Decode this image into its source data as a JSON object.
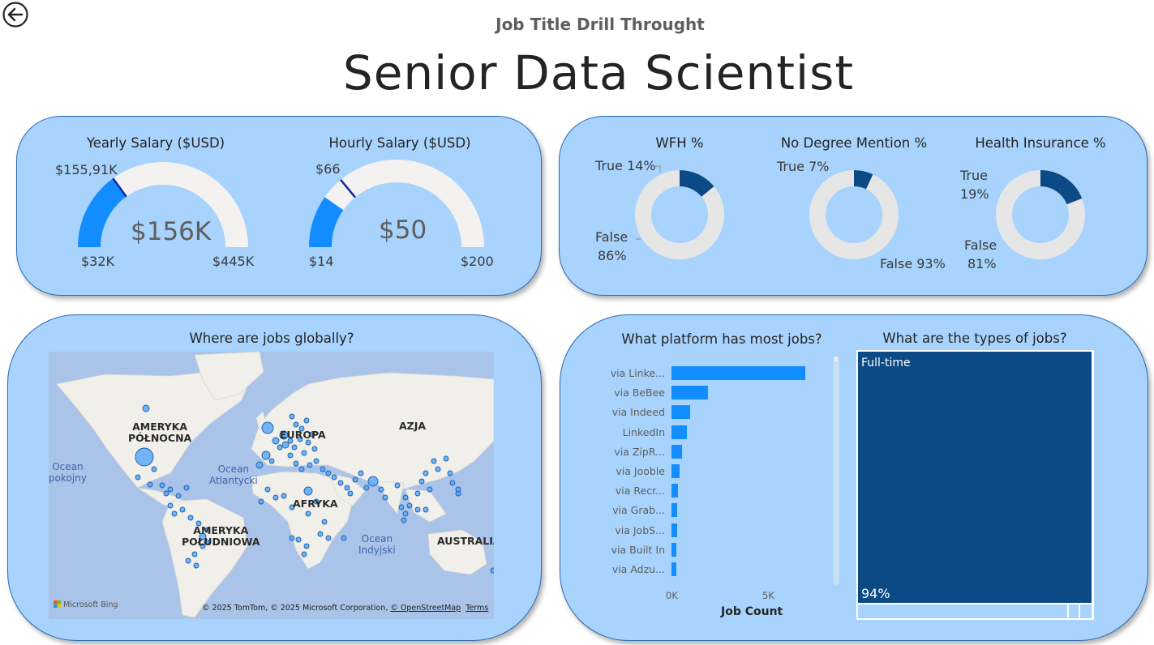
{
  "header": {
    "back_icon": "back-arrow-icon",
    "subtitle": "Job Title Drill Throught",
    "title": "Senior Data Scientist"
  },
  "salary": {
    "yearly": {
      "title": "Yearly Salary ($USD)",
      "value_label": "$156K",
      "target_label": "$155,91K",
      "min_label": "$32K",
      "max_label": "$445K",
      "value": 156,
      "target": 155.91,
      "min": 32,
      "max": 445
    },
    "hourly": {
      "title": "Hourly Salary ($USD)",
      "value_label": "$50",
      "target_label": "$66",
      "min_label": "$14",
      "max_label": "$200",
      "value": 50,
      "target": 66,
      "min": 14,
      "max": 200
    }
  },
  "percent": {
    "wfh": {
      "title": "WFH %",
      "true_label": "True 14%",
      "false_line1": "False",
      "false_line2": "86%",
      "true_pct": 14
    },
    "degree": {
      "title": "No Degree Mention %",
      "true_label": "True 7%",
      "false_label": "False 93%",
      "true_pct": 7
    },
    "health": {
      "title": "Health Insurance %",
      "true_line1": "True",
      "true_line2": "19%",
      "false_line1": "False",
      "false_line2": "81%",
      "true_pct": 19
    }
  },
  "map": {
    "title": "Where are jobs globally?",
    "labels": {
      "na": [
        "AMERYKA",
        "PÓŁNOCNA"
      ],
      "eu": "EUROPA",
      "as": "AZJA",
      "af": "AFRYKA",
      "sa": [
        "AMERYKA",
        "POŁUDNIOWA"
      ],
      "au": "AUSTRALIA"
    },
    "oceans": {
      "pacific": [
        "Ocean",
        "pokojny"
      ],
      "atlantic": [
        "Ocean",
        "Atlantycki"
      ],
      "indian": [
        "Ocean",
        "Indyjski"
      ]
    },
    "bing": "Microsoft Bing",
    "copyright": "© 2025 TomTom, © 2025 Microsoft Corporation,",
    "osm": "© OpenStreetMap",
    "terms": "Terms"
  },
  "platform": {
    "title": "What platform has most jobs?",
    "axis_title": "Job Count",
    "ticks": [
      "0K",
      "5K"
    ],
    "colors": {
      "bar": "#118dff"
    }
  },
  "chart_data": {
    "type": "bar",
    "orientation": "horizontal",
    "categories": [
      "via Linke...",
      "via BeBee",
      "via Indeed",
      "LinkedIn",
      "via ZipR...",
      "via Jooble",
      "via Recr...",
      "via Grab...",
      "via JobS...",
      "via Built In",
      "via Adzu..."
    ],
    "values": [
      7500,
      2050,
      1050,
      850,
      600,
      450,
      380,
      330,
      300,
      280,
      260
    ],
    "xlabel": "Job Count",
    "xlim": [
      0,
      7500
    ]
  },
  "types": {
    "title": "What are the types of jobs?",
    "top_label": "Full-time",
    "pct_label": "94%",
    "colors": {
      "main": "#0c4a85",
      "border": "#ffffff"
    }
  }
}
